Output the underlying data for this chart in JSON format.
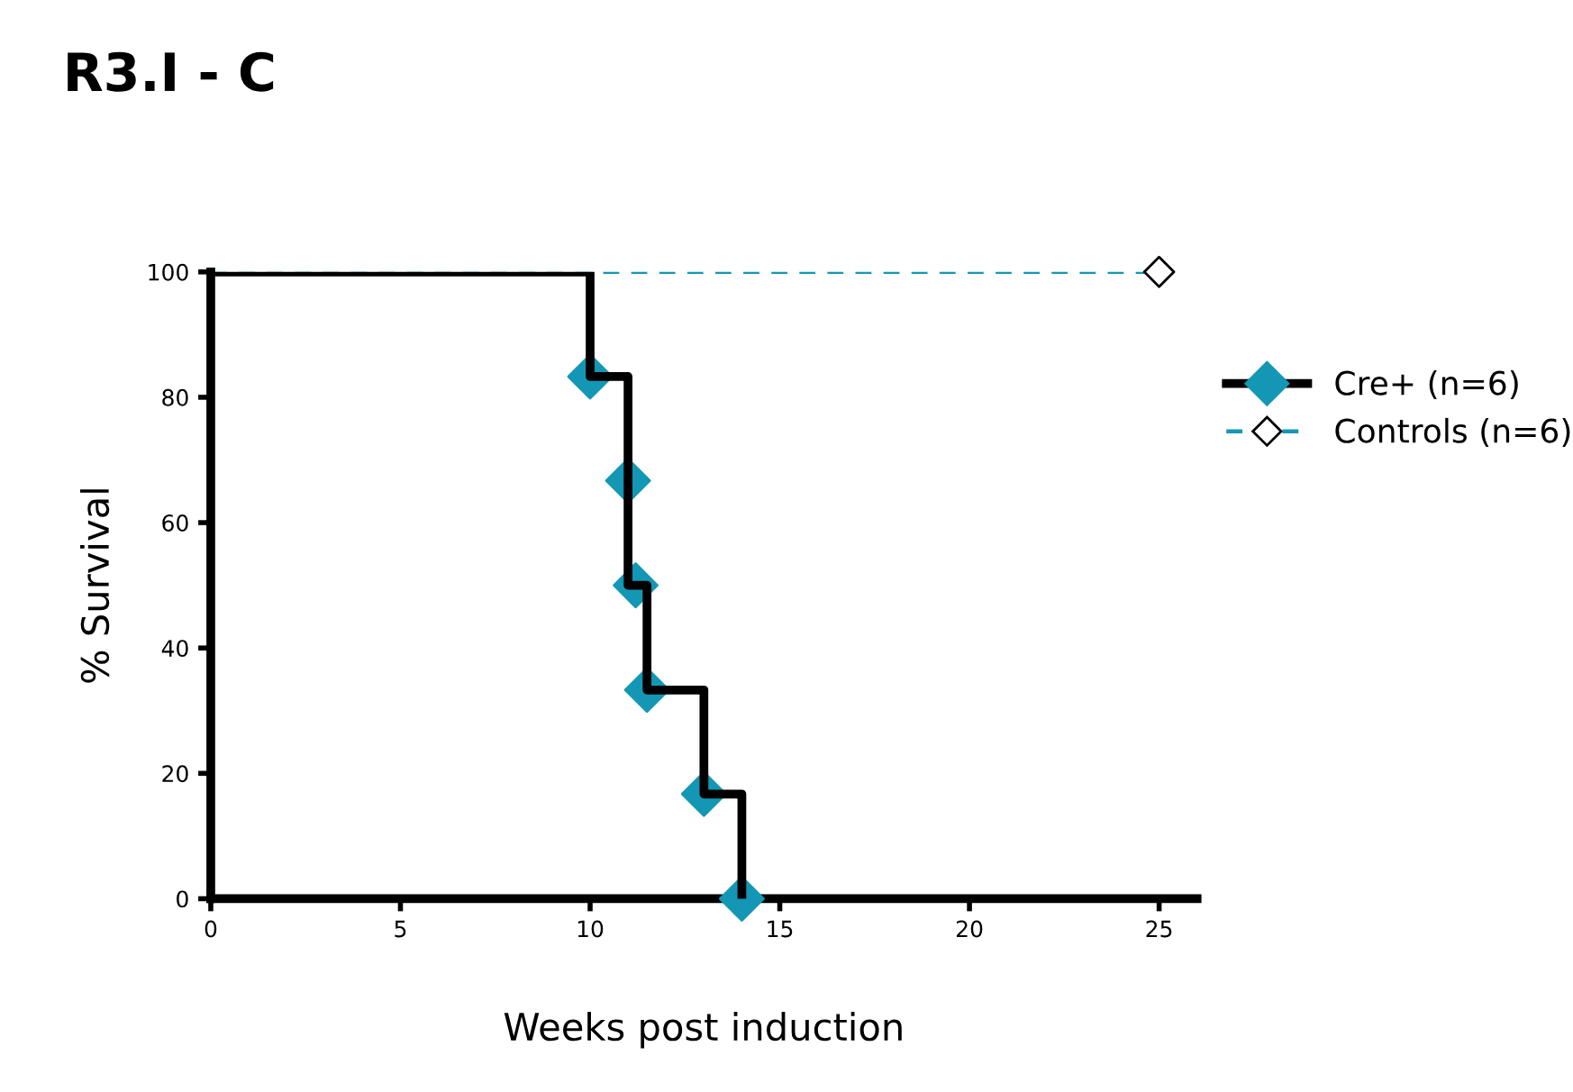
{
  "chart_data": {
    "type": "step",
    "title": "R3.I - C",
    "xlabel": "Weeks post induction",
    "ylabel": "% Survival",
    "series": [
      {
        "name": "Cre+ (n=6)",
        "color": "#000000",
        "x": [
          0,
          10,
          11,
          11.5,
          13,
          14
        ],
        "values": [
          100,
          83.3,
          50,
          33.3,
          16.7,
          0
        ],
        "line_style": "solid"
      },
      {
        "type": "scatter",
        "color": "#1497b4",
        "marker": "diamond",
        "x": [
          10,
          11,
          11.2,
          11.5,
          13,
          14
        ],
        "values": [
          83.3,
          66.7,
          50,
          33.3,
          16.7,
          0
        ]
      },
      {
        "name": "Controls (n=6)",
        "type": "line",
        "color": "#1497b4",
        "x": [
          0,
          25
        ],
        "values": [
          100,
          100
        ],
        "line_style": "dashed"
      },
      {
        "type": "scatter",
        "color": "#ffffff",
        "marker": "diamond",
        "x": [
          25
        ],
        "values": [
          100
        ]
      }
    ],
    "xlim": [
      0,
      26
    ],
    "ylim": [
      0,
      100
    ],
    "xticks": [
      0,
      5,
      10,
      15,
      20,
      25
    ],
    "yticks": [
      0,
      20,
      40,
      60,
      80,
      100
    ],
    "grid": false,
    "legend": "right"
  }
}
